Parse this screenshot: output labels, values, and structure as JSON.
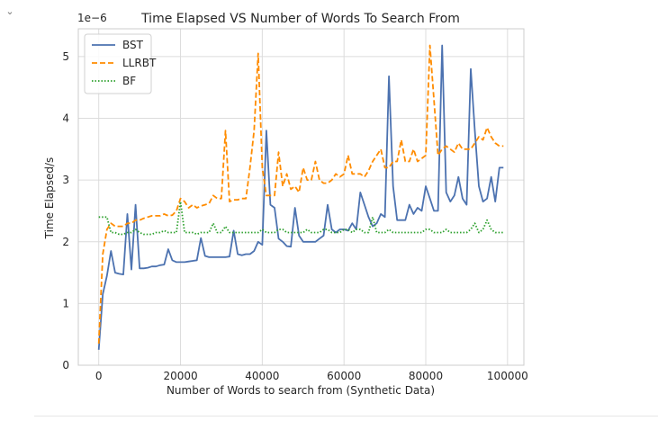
{
  "cell": {
    "collapse_icon": "chevron-down-icon"
  },
  "chart_data": {
    "type": "line",
    "title": "Time Elapsed VS Number of Words To Search From",
    "xlabel": "Number of Words to search from (Synthetic Data)",
    "ylabel": "Time Elapsed/s",
    "y_offset_label": "1e−6",
    "xlim": [
      -5000,
      104000
    ],
    "ylim": [
      0,
      5.45
    ],
    "xticks": [
      0,
      20000,
      40000,
      60000,
      80000,
      100000
    ],
    "xtick_labels": [
      "0",
      "20000",
      "40000",
      "60000",
      "80000",
      "100000"
    ],
    "yticks": [
      0,
      1,
      2,
      3,
      4,
      5
    ],
    "ytick_labels": [
      "0",
      "1",
      "2",
      "3",
      "4",
      "5"
    ],
    "grid": true,
    "legend_position": "top-left",
    "x": [
      0,
      1000,
      2000,
      3000,
      4000,
      5000,
      6000,
      7000,
      8000,
      9000,
      10000,
      11000,
      12000,
      13000,
      14000,
      15000,
      16000,
      17000,
      18000,
      19000,
      20000,
      21000,
      22000,
      23000,
      24000,
      25000,
      26000,
      27000,
      28000,
      29000,
      30000,
      31000,
      32000,
      33000,
      34000,
      35000,
      36000,
      37000,
      38000,
      39000,
      40000,
      41000,
      42000,
      43000,
      44000,
      45000,
      46000,
      47000,
      48000,
      49000,
      50000,
      51000,
      52000,
      53000,
      54000,
      55000,
      56000,
      57000,
      58000,
      59000,
      60000,
      61000,
      62000,
      63000,
      64000,
      65000,
      66000,
      67000,
      68000,
      69000,
      70000,
      71000,
      72000,
      73000,
      74000,
      75000,
      76000,
      77000,
      78000,
      79000,
      80000,
      81000,
      82000,
      83000,
      84000,
      85000,
      86000,
      87000,
      88000,
      89000,
      90000,
      91000,
      92000,
      93000,
      94000,
      95000,
      96000,
      97000,
      98000,
      99000
    ],
    "series": [
      {
        "name": "BST",
        "color": "#4c72b0",
        "dash": "solid",
        "values": [
          0.25,
          1.15,
          1.45,
          1.85,
          1.5,
          1.48,
          1.47,
          2.45,
          1.55,
          2.6,
          1.57,
          1.57,
          1.58,
          1.6,
          1.6,
          1.62,
          1.63,
          1.88,
          1.7,
          1.67,
          1.67,
          1.67,
          1.68,
          1.69,
          1.7,
          2.06,
          1.77,
          1.75,
          1.75,
          1.75,
          1.75,
          1.75,
          1.76,
          2.18,
          1.8,
          1.78,
          1.8,
          1.8,
          1.85,
          2.0,
          1.95,
          3.8,
          2.6,
          2.55,
          2.05,
          2.0,
          1.93,
          1.92,
          2.55,
          2.1,
          2.0,
          2.0,
          2.0,
          2.0,
          2.05,
          2.1,
          2.6,
          2.2,
          2.15,
          2.2,
          2.2,
          2.18,
          2.3,
          2.2,
          2.8,
          2.6,
          2.4,
          2.25,
          2.3,
          2.45,
          2.4,
          4.68,
          2.9,
          2.35,
          2.35,
          2.35,
          2.6,
          2.45,
          2.55,
          2.5,
          2.9,
          2.7,
          2.5,
          2.5,
          5.18,
          2.8,
          2.65,
          2.75,
          3.05,
          2.7,
          2.6,
          4.8,
          3.8,
          2.9,
          2.65,
          2.7,
          3.05,
          2.65,
          3.2,
          3.2
        ]
      },
      {
        "name": "LLRBT",
        "color": "#ff8c00",
        "dash": "dashed",
        "values": [
          0.35,
          1.8,
          2.2,
          2.3,
          2.25,
          2.25,
          2.25,
          2.3,
          2.3,
          2.35,
          2.35,
          2.38,
          2.4,
          2.42,
          2.42,
          2.42,
          2.45,
          2.42,
          2.43,
          2.5,
          2.7,
          2.65,
          2.55,
          2.6,
          2.55,
          2.58,
          2.6,
          2.62,
          2.75,
          2.7,
          2.7,
          3.8,
          2.65,
          2.68,
          2.68,
          2.7,
          2.7,
          3.2,
          3.8,
          5.05,
          3.2,
          2.75,
          2.75,
          2.75,
          3.45,
          2.9,
          3.1,
          2.85,
          2.9,
          2.8,
          3.2,
          3.0,
          3.0,
          3.3,
          3.0,
          2.95,
          2.95,
          3.0,
          3.1,
          3.05,
          3.1,
          3.4,
          3.1,
          3.1,
          3.1,
          3.05,
          3.15,
          3.3,
          3.4,
          3.5,
          3.2,
          3.2,
          3.3,
          3.3,
          3.65,
          3.3,
          3.3,
          3.5,
          3.3,
          3.35,
          3.4,
          5.18,
          4.3,
          3.4,
          3.5,
          3.55,
          3.5,
          3.45,
          3.6,
          3.5,
          3.5,
          3.5,
          3.6,
          3.7,
          3.65,
          3.85,
          3.7,
          3.6,
          3.55,
          3.55
        ]
      },
      {
        "name": "BF",
        "color": "#2ca02c",
        "dash": "dotted",
        "values": [
          2.4,
          2.4,
          2.4,
          2.15,
          2.15,
          2.12,
          2.12,
          2.15,
          2.15,
          2.2,
          2.15,
          2.12,
          2.12,
          2.12,
          2.15,
          2.15,
          2.18,
          2.15,
          2.15,
          2.15,
          2.65,
          2.15,
          2.15,
          2.15,
          2.12,
          2.15,
          2.15,
          2.15,
          2.3,
          2.15,
          2.15,
          2.25,
          2.15,
          2.15,
          2.15,
          2.15,
          2.15,
          2.15,
          2.15,
          2.15,
          2.2,
          2.15,
          2.15,
          2.15,
          2.2,
          2.2,
          2.15,
          2.15,
          2.15,
          2.15,
          2.15,
          2.2,
          2.15,
          2.15,
          2.15,
          2.2,
          2.2,
          2.15,
          2.15,
          2.15,
          2.2,
          2.2,
          2.15,
          2.2,
          2.2,
          2.15,
          2.15,
          2.4,
          2.15,
          2.15,
          2.15,
          2.2,
          2.15,
          2.15,
          2.15,
          2.15,
          2.15,
          2.15,
          2.15,
          2.15,
          2.2,
          2.2,
          2.15,
          2.15,
          2.15,
          2.2,
          2.15,
          2.15,
          2.15,
          2.15,
          2.15,
          2.2,
          2.3,
          2.15,
          2.2,
          2.35,
          2.2,
          2.15,
          2.15,
          2.15
        ]
      }
    ]
  }
}
